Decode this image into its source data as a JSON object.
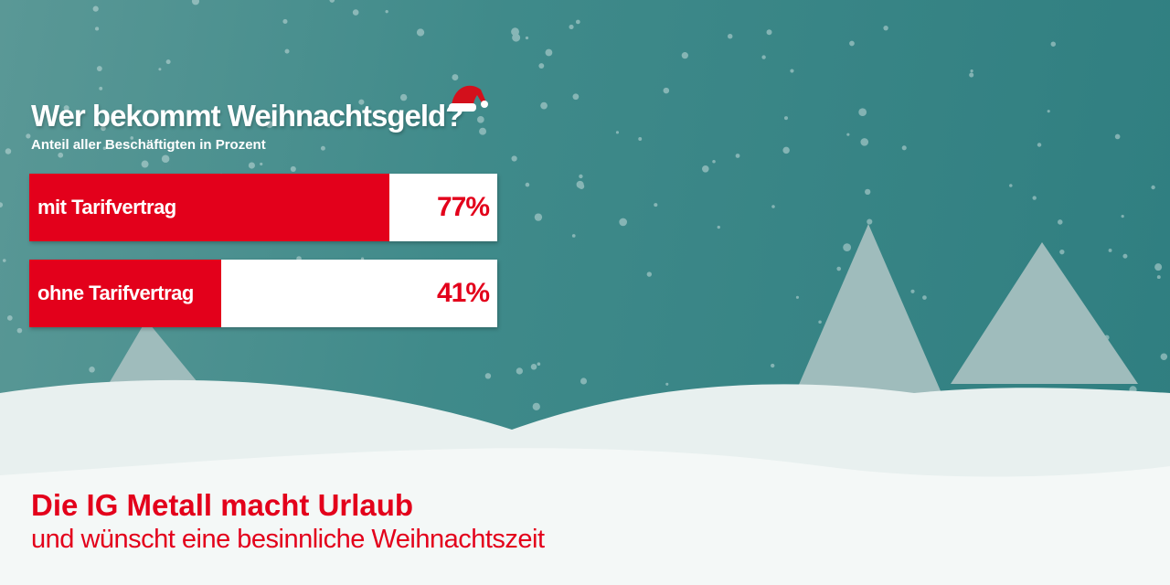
{
  "title": "Wer bekommt Weihnachtsgeld?",
  "subtitle": "Anteil aller Beschäftigten in Prozent",
  "chart_data": {
    "type": "bar",
    "orientation": "horizontal",
    "title": "Wer bekommt Weihnachtsgeld?",
    "subtitle": "Anteil aller Beschäftigten in Prozent",
    "categories": [
      "mit Tarifvertrag",
      "ohne Tarifvertrag"
    ],
    "values": [
      77,
      41
    ],
    "value_labels": [
      "77%",
      "41%"
    ],
    "xlim": [
      0,
      100
    ],
    "bar_color": "#e3001b",
    "grid": false
  },
  "footer": {
    "headline": "Die IG Metall macht Urlaub",
    "subline": "und wünscht eine besinnliche Weihnachtszeit"
  },
  "colors": {
    "accent": "#e3001b",
    "background": "#3f8a8a",
    "snow": "#eef4f3"
  }
}
